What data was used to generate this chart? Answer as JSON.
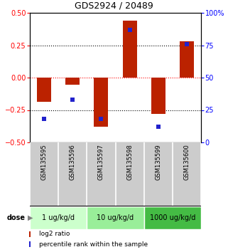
{
  "title": "GDS2924 / 20489",
  "samples": [
    "GSM135595",
    "GSM135596",
    "GSM135597",
    "GSM135598",
    "GSM135599",
    "GSM135600"
  ],
  "log2_ratio": [
    -0.185,
    -0.055,
    -0.38,
    0.44,
    -0.28,
    0.28
  ],
  "percentile_rank": [
    18,
    33,
    18,
    87,
    12,
    76
  ],
  "bar_color": "#bb2200",
  "dot_color": "#2222cc",
  "ylim_left": [
    -0.5,
    0.5
  ],
  "ylim_right": [
    0,
    100
  ],
  "yticks_left": [
    -0.5,
    -0.25,
    0,
    0.25,
    0.5
  ],
  "yticks_right": [
    0,
    25,
    50,
    75,
    100
  ],
  "hlines": [
    -0.25,
    0.0,
    0.25
  ],
  "hline_colors": [
    "black",
    "red",
    "black"
  ],
  "dose_groups": [
    {
      "label": "1 ug/kg/d",
      "color": "#ccffcc"
    },
    {
      "label": "10 ug/kg/d",
      "color": "#99ee99"
    },
    {
      "label": "1000 ug/kg/d",
      "color": "#44bb44"
    }
  ],
  "dose_label": "dose",
  "legend_red_label": "log2 ratio",
  "legend_blue_label": "percentile rank within the sample",
  "bg_color_plot": "#ffffff",
  "bg_color_sample": "#cccccc",
  "bar_width": 0.5
}
